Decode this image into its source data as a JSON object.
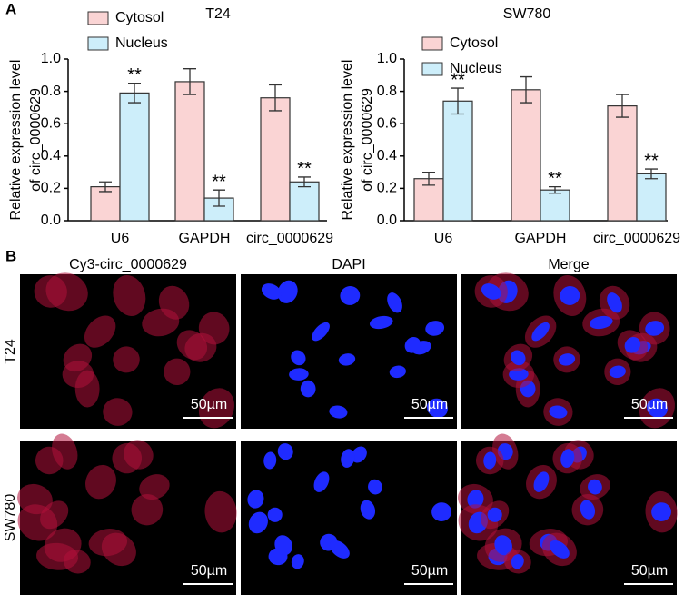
{
  "panel_labels": [
    "A",
    "B"
  ],
  "chart_data": [
    {
      "type": "bar",
      "title": "T24",
      "ylabel": [
        "Relative expression level",
        "of circ_0000629"
      ],
      "categories": [
        "U6",
        "GAPDH",
        "circ_0000629"
      ],
      "series": [
        {
          "name": "Cytosol",
          "color": "#fad4d4",
          "values": [
            0.21,
            0.86,
            0.76
          ],
          "errors": [
            0.03,
            0.08,
            0.08
          ]
        },
        {
          "name": "Nucleus",
          "color": "#cdeefa",
          "values": [
            0.79,
            0.14,
            0.24
          ],
          "errors": [
            0.06,
            0.05,
            0.03
          ],
          "significance": [
            "**",
            "**",
            "**"
          ]
        }
      ],
      "ylim": [
        0,
        1.0
      ],
      "yticks": [
        {
          "value": 0,
          "label": "0.0"
        },
        {
          "value": 0.2,
          "label": "0.2"
        },
        {
          "value": 0.4,
          "label": "0.4"
        },
        {
          "value": 0.6,
          "label": "0.6"
        },
        {
          "value": 0.8,
          "label": "0.8"
        },
        {
          "value": 1.0,
          "label": "1.0"
        }
      ]
    },
    {
      "type": "bar",
      "title": "SW780",
      "ylabel": [
        "Relative expression level",
        "of circ_0000629"
      ],
      "categories": [
        "U6",
        "GAPDH",
        "circ_0000629"
      ],
      "series": [
        {
          "name": "Cytosol",
          "color": "#fad4d4",
          "values": [
            0.26,
            0.81,
            0.71
          ],
          "errors": [
            0.04,
            0.08,
            0.07
          ]
        },
        {
          "name": "Nucleus",
          "color": "#cdeefa",
          "values": [
            0.74,
            0.19,
            0.29
          ],
          "errors": [
            0.08,
            0.02,
            0.03
          ],
          "significance": [
            "**",
            "**",
            "**"
          ]
        }
      ],
      "ylim": [
        0,
        1.0
      ],
      "yticks": [
        {
          "value": 0,
          "label": "0.0"
        },
        {
          "value": 0.2,
          "label": "0.2"
        },
        {
          "value": 0.4,
          "label": "0.4"
        },
        {
          "value": 0.6,
          "label": "0.6"
        },
        {
          "value": 0.8,
          "label": "0.8"
        },
        {
          "value": 1.0,
          "label": "1.0"
        }
      ]
    }
  ],
  "images": {
    "columns": [
      "Cy3-circ_0000629",
      "DAPI",
      "Merge"
    ],
    "rows": [
      "T24",
      "SW780"
    ],
    "scale_bars": [
      "50µm",
      "50µm",
      "50µm",
      "50µm",
      "50µm",
      "50µm"
    ]
  }
}
